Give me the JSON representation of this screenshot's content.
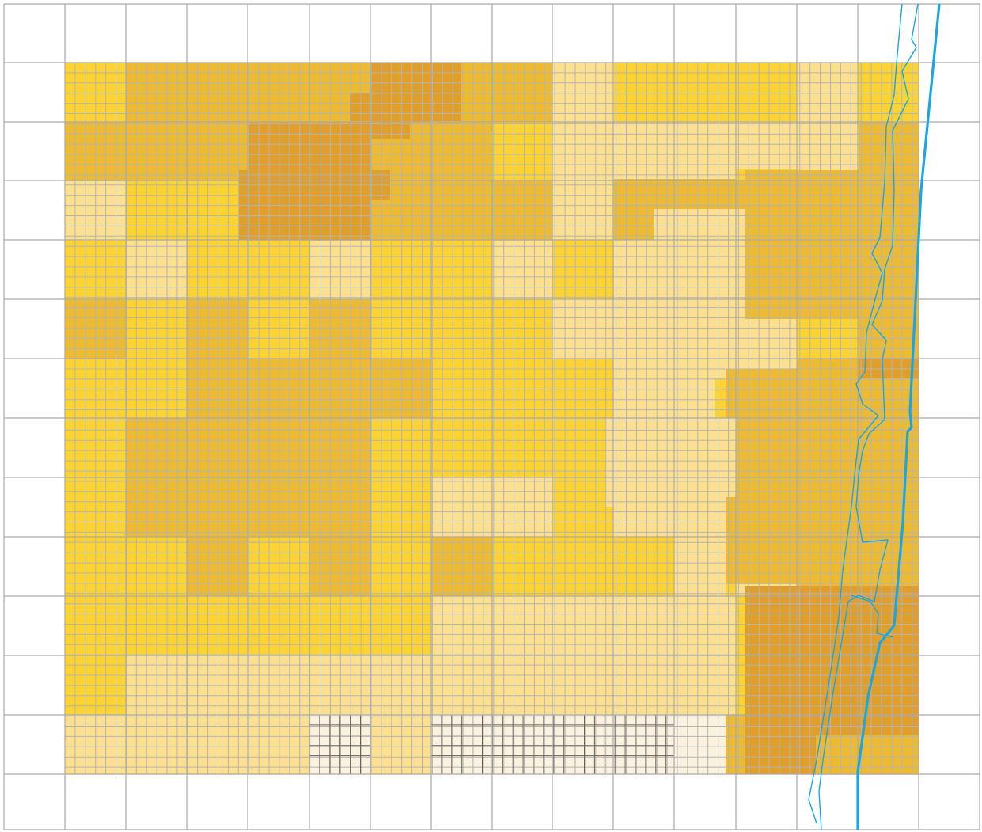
{
  "map": {
    "colors": {
      "background": "#ffffff",
      "outer_grid": "#aaaaaa",
      "fine_grid_warm": "#b4b4b4",
      "fine_grid_light": "#6e6258",
      "river_main": "#1ba6e0",
      "river_bank": "#1ba6e0"
    },
    "legend_classes": [
      {
        "class": 0,
        "color": "#fbf1df"
      },
      {
        "class": 1,
        "color": "#fde08f"
      },
      {
        "class": 2,
        "color": "#fdd331"
      },
      {
        "class": 3,
        "color": "#edbb32"
      },
      {
        "class": 4,
        "color": "#e09f2a"
      }
    ],
    "cell_grid": {
      "columns": 14,
      "rows": 12,
      "values": [
        [
          2,
          3,
          3,
          3,
          3,
          4,
          3,
          3,
          1,
          2,
          2,
          2,
          1,
          2
        ],
        [
          3,
          3,
          3,
          4,
          4,
          3,
          3,
          2,
          1,
          1,
          1,
          2,
          1,
          3
        ],
        [
          1,
          2,
          2,
          4,
          4,
          3,
          3,
          3,
          1,
          3,
          3,
          3,
          3,
          3
        ],
        [
          2,
          1,
          2,
          2,
          1,
          2,
          2,
          1,
          2,
          1,
          1,
          1,
          3,
          3
        ],
        [
          3,
          2,
          3,
          2,
          3,
          2,
          2,
          2,
          1,
          1,
          1,
          1,
          1,
          3
        ],
        [
          2,
          2,
          3,
          3,
          3,
          3,
          2,
          2,
          2,
          1,
          1,
          1,
          3,
          3
        ],
        [
          2,
          3,
          3,
          3,
          3,
          2,
          2,
          2,
          2,
          1,
          1,
          3,
          3,
          3
        ],
        [
          2,
          3,
          3,
          3,
          3,
          2,
          1,
          1,
          2,
          1,
          1,
          3,
          3,
          3
        ],
        [
          2,
          2,
          3,
          2,
          3,
          2,
          3,
          2,
          2,
          2,
          2,
          1,
          3,
          3
        ],
        [
          2,
          2,
          2,
          2,
          2,
          2,
          1,
          1,
          1,
          1,
          1,
          2,
          4,
          4
        ],
        [
          2,
          1,
          1,
          1,
          1,
          1,
          1,
          1,
          1,
          1,
          1,
          2,
          4,
          4
        ],
        [
          1,
          1,
          1,
          1,
          0,
          1,
          0,
          0,
          0,
          0,
          0,
          1,
          4,
          4
        ]
      ]
    }
  }
}
